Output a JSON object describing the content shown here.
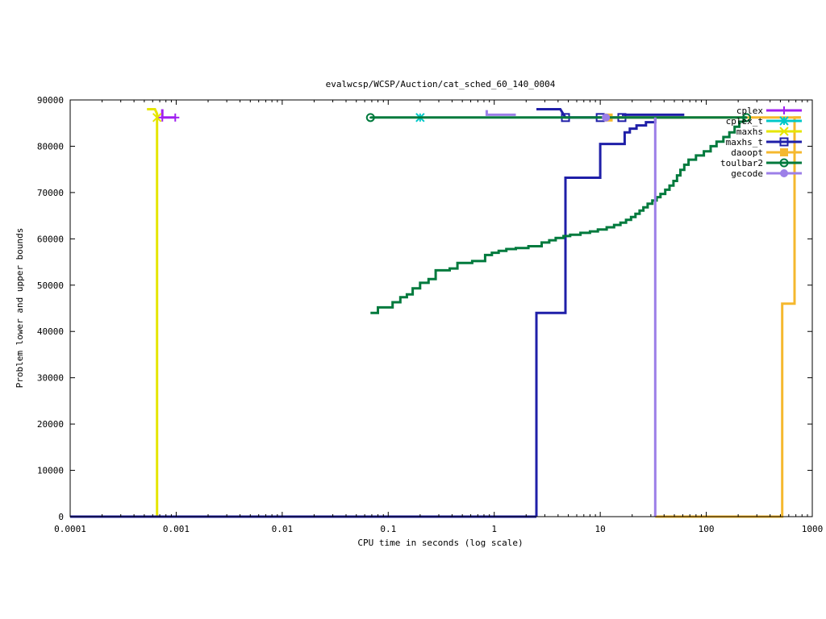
{
  "chart_data": {
    "type": "line",
    "title": "evalwcsp/WCSP/Auction/cat_sched_60_140_0004",
    "xlabel": "CPU time in seconds (log scale)",
    "ylabel": "Problem lower and upper bounds",
    "x_scale": "log",
    "xlim": [
      0.0001,
      1000
    ],
    "ylim": [
      0,
      90000
    ],
    "x_ticks": [
      {
        "value": 0.0001,
        "label": "0.0001"
      },
      {
        "value": 0.001,
        "label": "0.001"
      },
      {
        "value": 0.01,
        "label": "0.01"
      },
      {
        "value": 0.1,
        "label": "0.1"
      },
      {
        "value": 1,
        "label": "1"
      },
      {
        "value": 10,
        "label": "10"
      },
      {
        "value": 100,
        "label": "100"
      },
      {
        "value": 1000,
        "label": "1000"
      }
    ],
    "y_ticks": [
      {
        "value": 0,
        "label": "0"
      },
      {
        "value": 10000,
        "label": "10000"
      },
      {
        "value": 20000,
        "label": "20000"
      },
      {
        "value": 30000,
        "label": "30000"
      },
      {
        "value": 40000,
        "label": "40000"
      },
      {
        "value": 50000,
        "label": "50000"
      },
      {
        "value": 60000,
        "label": "60000"
      },
      {
        "value": 70000,
        "label": "70000"
      },
      {
        "value": 80000,
        "label": "80000"
      },
      {
        "value": 90000,
        "label": "90000"
      }
    ],
    "grid": false,
    "legend": "top-right",
    "series": [
      {
        "name": "cplex",
        "color": "#a020f0",
        "marker": "plus",
        "lines": [
          [
            [
              0.00074,
              88000
            ],
            [
              0.00074,
              86200
            ],
            [
              0.00098,
              86200
            ]
          ],
          [
            [
              0.0001,
              0
            ],
            [
              0.00066,
              0
            ]
          ]
        ],
        "points": [
          [
            0.00074,
            86200
          ],
          [
            0.00098,
            86200
          ]
        ]
      },
      {
        "name": "cplex_t",
        "color": "#00c8c8",
        "marker": "star",
        "lines": [
          [
            [
              0.2,
              86200
            ],
            [
              0.2,
              86200
            ]
          ]
        ],
        "points": [
          [
            0.2,
            86200
          ]
        ]
      },
      {
        "name": "maxhs",
        "color": "#e6e600",
        "marker": "x",
        "lines": [
          [
            [
              0.00053,
              88000
            ],
            [
              0.00063,
              88000
            ],
            [
              0.00066,
              87000
            ],
            [
              0.00066,
              86200
            ]
          ],
          [
            [
              0.00066,
              86200
            ],
            [
              0.00066,
              0
            ]
          ]
        ],
        "points": [
          [
            0.00066,
            86200
          ]
        ]
      },
      {
        "name": "maxhs_t",
        "color": "#1f1fa8",
        "marker": "square",
        "lines": [
          [
            [
              2.5,
              0
            ],
            [
              2.5,
              44000
            ],
            [
              4.7,
              44000
            ],
            [
              4.7,
              73200
            ],
            [
              10,
              73200
            ],
            [
              10,
              80500
            ],
            [
              17,
              80500
            ],
            [
              17,
              83000
            ],
            [
              19,
              83000
            ],
            [
              19,
              83800
            ],
            [
              22,
              83800
            ],
            [
              22,
              84500
            ],
            [
              27,
              84500
            ],
            [
              27,
              85200
            ],
            [
              33,
              85200
            ],
            [
              33,
              86200
            ]
          ],
          [
            [
              2.5,
              88000
            ],
            [
              4.2,
              88000
            ],
            [
              4.7,
              86200
            ],
            [
              62,
              86200
            ]
          ],
          [
            [
              16,
              86800
            ],
            [
              62,
              86800
            ]
          ],
          [
            [
              0.0001,
              0
            ],
            [
              2.5,
              0
            ]
          ]
        ],
        "points": [
          [
            4.7,
            86200
          ],
          [
            10,
            86200
          ],
          [
            16,
            86200
          ]
        ]
      },
      {
        "name": "daoopt",
        "color": "#f5b82e",
        "marker": "filled-square",
        "lines": [
          [
            [
              10,
              86200
            ],
            [
              240,
              86200
            ],
            [
              780,
              86200
            ]
          ],
          [
            [
              33,
              0
            ],
            [
              520,
              0
            ],
            [
              520,
              46000
            ],
            [
              680,
              46000
            ],
            [
              680,
              86200
            ],
            [
              780,
              86200
            ]
          ]
        ],
        "points": [
          [
            12,
            86200
          ]
        ]
      },
      {
        "name": "toulbar2",
        "color": "#007a3d",
        "marker": "circle",
        "lines": [
          [
            [
              0.068,
              86200
            ],
            [
              240,
              86200
            ]
          ],
          [
            [
              0.068,
              44000
            ],
            [
              0.08,
              44000
            ],
            [
              0.08,
              45200
            ],
            [
              0.11,
              45200
            ],
            [
              0.11,
              46300
            ],
            [
              0.13,
              46300
            ],
            [
              0.13,
              47400
            ],
            [
              0.15,
              47400
            ],
            [
              0.15,
              48000
            ],
            [
              0.17,
              48000
            ],
            [
              0.17,
              49300
            ],
            [
              0.2,
              49300
            ],
            [
              0.2,
              50500
            ],
            [
              0.24,
              50500
            ],
            [
              0.24,
              51300
            ],
            [
              0.28,
              51300
            ],
            [
              0.28,
              53200
            ],
            [
              0.38,
              53200
            ],
            [
              0.38,
              53600
            ],
            [
              0.45,
              53600
            ],
            [
              0.45,
              54800
            ],
            [
              0.62,
              54800
            ],
            [
              0.62,
              55200
            ],
            [
              0.82,
              55200
            ],
            [
              0.82,
              56500
            ],
            [
              0.95,
              56500
            ],
            [
              0.95,
              57000
            ],
            [
              1.1,
              57000
            ],
            [
              1.1,
              57400
            ],
            [
              1.3,
              57400
            ],
            [
              1.3,
              57800
            ],
            [
              1.6,
              57800
            ],
            [
              1.6,
              58000
            ],
            [
              2.1,
              58000
            ],
            [
              2.1,
              58400
            ],
            [
              2.8,
              58400
            ],
            [
              2.8,
              59200
            ],
            [
              3.3,
              59200
            ],
            [
              3.3,
              59700
            ],
            [
              3.8,
              59700
            ],
            [
              3.8,
              60200
            ],
            [
              4.5,
              60200
            ],
            [
              4.5,
              60600
            ],
            [
              5.2,
              60600
            ],
            [
              5.2,
              60900
            ],
            [
              6.5,
              60900
            ],
            [
              6.5,
              61300
            ],
            [
              8,
              61300
            ],
            [
              8,
              61600
            ],
            [
              9.5,
              61600
            ],
            [
              9.5,
              62000
            ],
            [
              11.5,
              62000
            ],
            [
              11.5,
              62500
            ],
            [
              13.5,
              62500
            ],
            [
              13.5,
              63000
            ],
            [
              15.5,
              63000
            ],
            [
              15.5,
              63500
            ],
            [
              17.5,
              63500
            ],
            [
              17.5,
              64100
            ],
            [
              19.5,
              64100
            ],
            [
              19.5,
              64700
            ],
            [
              21.5,
              64700
            ],
            [
              21.5,
              65400
            ],
            [
              23.5,
              65400
            ],
            [
              23.5,
              66100
            ],
            [
              25.5,
              66100
            ],
            [
              25.5,
              66800
            ],
            [
              28,
              66800
            ],
            [
              28,
              67600
            ],
            [
              31,
              67600
            ],
            [
              31,
              68300
            ],
            [
              34,
              68300
            ],
            [
              34,
              69000
            ],
            [
              37,
              69000
            ],
            [
              37,
              69700
            ],
            [
              41,
              69700
            ],
            [
              41,
              70600
            ],
            [
              45,
              70600
            ],
            [
              45,
              71500
            ],
            [
              49,
              71500
            ],
            [
              49,
              72500
            ],
            [
              53,
              72500
            ],
            [
              53,
              73700
            ],
            [
              57,
              73700
            ],
            [
              57,
              74900
            ],
            [
              62,
              74900
            ],
            [
              62,
              76000
            ],
            [
              68,
              76000
            ],
            [
              68,
              77100
            ],
            [
              80,
              77100
            ],
            [
              80,
              78000
            ],
            [
              95,
              78000
            ],
            [
              95,
              78900
            ],
            [
              110,
              78900
            ],
            [
              110,
              80000
            ],
            [
              125,
              80000
            ],
            [
              125,
              81000
            ],
            [
              145,
              81000
            ],
            [
              145,
              82000
            ],
            [
              165,
              82000
            ],
            [
              165,
              83000
            ],
            [
              185,
              83000
            ],
            [
              185,
              84200
            ],
            [
              205,
              84200
            ],
            [
              205,
              85300
            ],
            [
              225,
              85300
            ],
            [
              225,
              86200
            ],
            [
              240,
              86200
            ]
          ]
        ],
        "points": [
          [
            0.068,
            86200
          ],
          [
            240,
            86200
          ]
        ]
      },
      {
        "name": "gecode",
        "color": "#9c7fe8",
        "marker": "filled-circle",
        "lines": [
          [
            [
              0.85,
              87800
            ],
            [
              0.85,
              86800
            ],
            [
              1.6,
              86800
            ]
          ],
          [
            [
              33,
              86200
            ],
            [
              33,
              0
            ]
          ]
        ],
        "points": [
          [
            11.3,
            86200
          ]
        ]
      }
    ]
  }
}
